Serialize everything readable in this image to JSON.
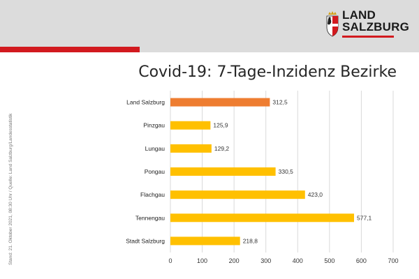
{
  "brand": {
    "line1": "LAND",
    "line2": "SALZBURG",
    "accent_color": "#d21a1f",
    "icon": "coat-of-arms-icon"
  },
  "side_note": "Stand: 21. Oktober 2021, 08:30 Uhr / Quelle: Land Salzburg/Landesstatistik",
  "chart_data": {
    "type": "bar",
    "orientation": "horizontal",
    "title": "Covid-19: 7-Tage-Inzidenz Bezirke",
    "categories": [
      "Land Salzburg",
      "Pinzgau",
      "Lungau",
      "Pongau",
      "Flachgau",
      "Tennengau",
      "Stadt Salzburg"
    ],
    "values": [
      312.5,
      125.9,
      129.2,
      330.5,
      423.0,
      577.1,
      218.8
    ],
    "value_labels": [
      "312,5",
      "125,9",
      "129,2",
      "330,5",
      "423,0",
      "577,1",
      "218,8"
    ],
    "colors": [
      "#ee7d31",
      "#ffc000",
      "#ffc000",
      "#ffc000",
      "#ffc000",
      "#ffc000",
      "#ffc000"
    ],
    "xlim": [
      0,
      700
    ],
    "xticks": [
      0,
      100,
      200,
      300,
      400,
      500,
      600,
      700
    ],
    "xlabel": "",
    "ylabel": "",
    "grid": true
  }
}
